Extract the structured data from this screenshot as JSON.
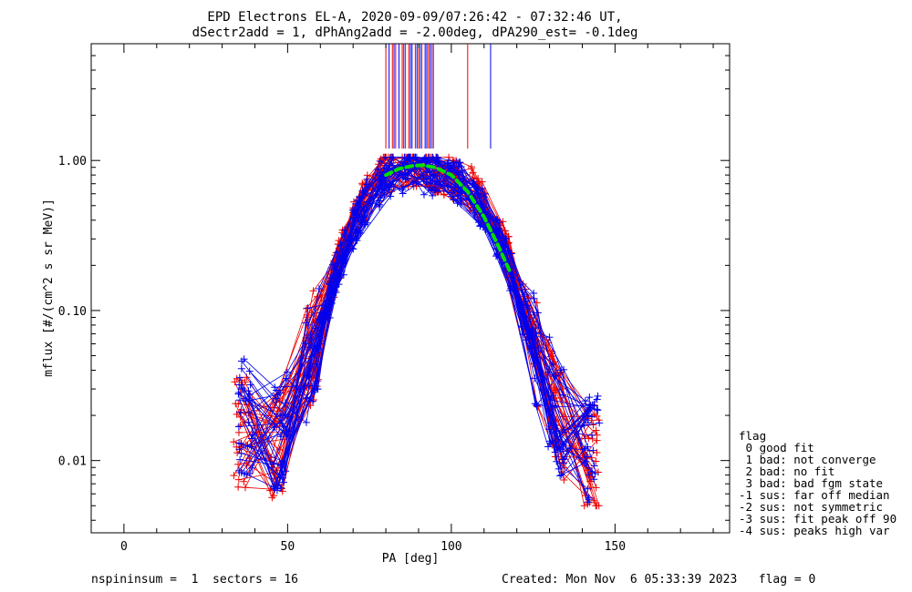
{
  "title_line1": "EPD Electrons EL-A, 2020-09-09/07:26:42 - 07:32:46 UT,",
  "title_line2": "dSectr2add = 1, dPhAng2add = -2.00deg, dPA290_est=  -0.1deg",
  "footer": {
    "left": "nspininsum =  1  sectors = 16",
    "right": "Created: Mon Nov  6 05:33:39 2023   flag = 0"
  },
  "legend": {
    "title": "flag",
    "items": [
      " 0 good fit",
      " 1 bad: not converge",
      " 2 bad: no fit",
      " 3 bad: bad fgm state",
      "-1 sus: far off median",
      "-2 sus: not symmetric",
      "-3 sus: fit peak off 90",
      "-4 sus: peaks high var"
    ]
  },
  "colors": {
    "red": "#ee0000",
    "blue": "#0000ee",
    "fit": "#00dd00",
    "axis": "#000000"
  },
  "chart_data": {
    "type": "line",
    "title": "EPD Electrons EL-A, 2020-09-09/07:26:42 - 07:32:46 UT,",
    "subtitle": "dSectr2add = 1, dPhAng2add = -2.00deg, dPA290_est=  -0.1deg",
    "xlabel": "PA [deg]",
    "ylabel": "mflux [#/(cm^2 s sr MeV)]",
    "xlim": [
      -10,
      185
    ],
    "ylim": [
      0.0033,
      6.0
    ],
    "yscale": "log",
    "x_ticks": [
      0,
      50,
      100,
      150
    ],
    "x_tick_labels": [
      "0",
      "50",
      "100",
      "150"
    ],
    "y_ticks": [
      1.0,
      0.1,
      0.01
    ],
    "y_tick_labels": [
      "1.00",
      "0.10",
      "0.01"
    ],
    "series": [
      {
        "color": "red",
        "x": [
          36,
          47,
          58,
          65,
          72,
          80,
          87,
          94,
          100,
          108,
          116,
          124,
          132,
          143
        ],
        "y": [
          0.016,
          0.012,
          0.06,
          0.2,
          0.5,
          0.85,
          0.9,
          0.88,
          0.8,
          0.6,
          0.3,
          0.08,
          0.02,
          0.01
        ]
      },
      {
        "color": "blue",
        "x": [
          37,
          48,
          58,
          65,
          72,
          80,
          87,
          94,
          101,
          108,
          116,
          124,
          132,
          143
        ],
        "y": [
          0.02,
          0.015,
          0.055,
          0.18,
          0.45,
          0.8,
          0.85,
          0.82,
          0.75,
          0.55,
          0.25,
          0.07,
          0.02,
          0.012
        ]
      }
    ],
    "fit_curve": {
      "color": "fit",
      "style": "dashed",
      "x": [
        80,
        84,
        88,
        91,
        95,
        100,
        105,
        110,
        114,
        118
      ],
      "y": [
        0.8,
        0.88,
        0.92,
        0.93,
        0.9,
        0.8,
        0.62,
        0.42,
        0.28,
        0.18
      ]
    },
    "flag_lines": {
      "x_range_deg": [
        80,
        112
      ],
      "y_from": 1.2,
      "y_to": 6.0,
      "red_x": [
        80,
        82,
        83,
        85,
        86,
        87,
        89,
        90,
        91,
        93,
        94,
        105
      ],
      "blue_x": [
        81,
        82.5,
        84,
        85.5,
        87.5,
        88,
        89.5,
        90.5,
        92,
        92.5,
        93.5,
        94.5,
        112
      ]
    },
    "grid": false,
    "legend_position": "bottom-right outside plot"
  }
}
